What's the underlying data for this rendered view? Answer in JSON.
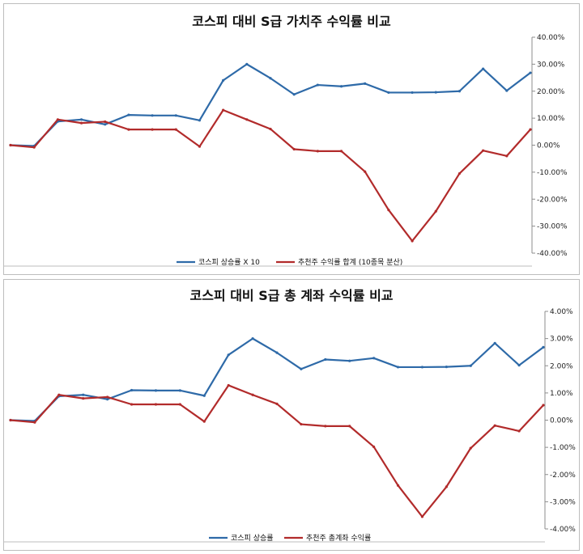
{
  "chart_data": [
    {
      "type": "line",
      "title": "코스피 대비 S급 가치주 수익률 비교",
      "y_axis_side": "right",
      "ylim": [
        -0.4,
        0.4
      ],
      "yticks": [
        0.4,
        0.3,
        0.2,
        0.1,
        0.0,
        -0.1,
        -0.2,
        -0.3,
        -0.4
      ],
      "ytick_labels": [
        "40.00%",
        "30.00%",
        "20.00%",
        "10.00%",
        "0.00%",
        "-10.00%",
        "-20.00%",
        "-30.00%",
        "-40.00%"
      ],
      "grid": false,
      "legend_position": "bottom",
      "series": [
        {
          "name": "코스피 상승률 X 10",
          "color": "#2e6aa8",
          "values": [
            0.0,
            -0.003,
            0.088,
            0.095,
            0.077,
            0.112,
            0.11,
            0.11,
            0.092,
            0.24,
            0.3,
            0.248,
            0.188,
            0.223,
            0.218,
            0.228,
            0.195,
            0.195,
            0.196,
            0.2,
            0.283,
            0.202,
            0.268
          ]
        },
        {
          "name": "추천주 수익률 합계 (10종목 분산)",
          "color": "#b22b2b",
          "values": [
            0.0,
            -0.008,
            0.095,
            0.082,
            0.087,
            0.058,
            0.058,
            0.058,
            -0.005,
            0.13,
            0.095,
            0.06,
            -0.015,
            -0.022,
            -0.022,
            -0.098,
            -0.24,
            -0.355,
            -0.245,
            -0.105,
            -0.02,
            -0.04,
            0.058
          ]
        }
      ]
    },
    {
      "type": "line",
      "title": "코스피 대비 S급 총 계좌 수익률 비교",
      "y_axis_side": "right",
      "ylim": [
        -0.04,
        0.04
      ],
      "yticks": [
        0.04,
        0.03,
        0.02,
        0.01,
        0.0,
        -0.01,
        -0.02,
        -0.03,
        -0.04
      ],
      "ytick_labels": [
        "4.00%",
        "3.00%",
        "2.00%",
        "1.00%",
        "0.00%",
        "-1.00%",
        "-2.00%",
        "-3.00%",
        "-4.00%"
      ],
      "grid": false,
      "legend_position": "bottom",
      "series": [
        {
          "name": "코스피 상승률",
          "color": "#2e6aa8",
          "values": [
            0.0,
            -0.0003,
            0.0088,
            0.0093,
            0.0077,
            0.011,
            0.0109,
            0.0109,
            0.009,
            0.024,
            0.03,
            0.0248,
            0.0188,
            0.0223,
            0.0218,
            0.0228,
            0.0195,
            0.0195,
            0.0196,
            0.02,
            0.0283,
            0.0202,
            0.0268
          ]
        },
        {
          "name": "추천주 총계좌 수익률",
          "color": "#b22b2b",
          "values": [
            0.0,
            -0.0008,
            0.0093,
            0.008,
            0.0085,
            0.0058,
            0.0058,
            0.0058,
            -0.0005,
            0.0128,
            0.0093,
            0.006,
            -0.0015,
            -0.0022,
            -0.0022,
            -0.0098,
            -0.024,
            -0.0355,
            -0.0245,
            -0.0103,
            -0.002,
            -0.004,
            0.0055
          ]
        }
      ]
    }
  ]
}
